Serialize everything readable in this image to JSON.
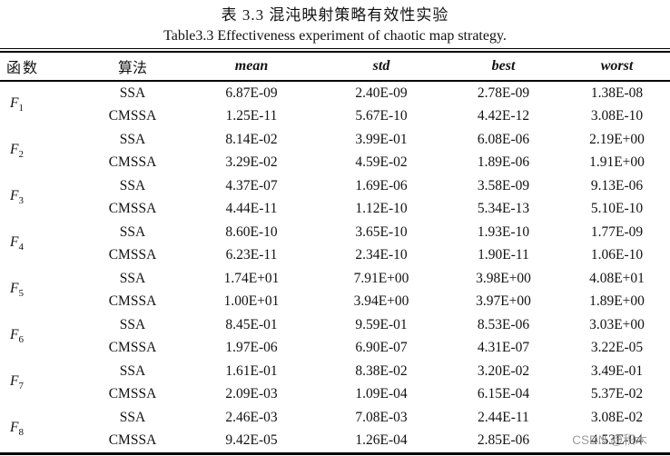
{
  "title": {
    "zh": "表 3.3  混沌映射策略有效性实验",
    "en": "Table3.3 Effectiveness experiment of chaotic map strategy."
  },
  "table": {
    "columns": [
      "函数",
      "算法",
      "mean",
      "std",
      "best",
      "worst"
    ],
    "groups": [
      {
        "func": "F",
        "sub": "1",
        "rows": [
          {
            "algorithm": "SSA",
            "values": [
              "6.87E-09",
              "2.40E-09",
              "2.78E-09",
              "1.38E-08"
            ]
          },
          {
            "algorithm": "CMSSA",
            "values": [
              "1.25E-11",
              "5.67E-10",
              "4.42E-12",
              "3.08E-10"
            ]
          }
        ]
      },
      {
        "func": "F",
        "sub": "2",
        "rows": [
          {
            "algorithm": "SSA",
            "values": [
              "8.14E-02",
              "3.99E-01",
              "6.08E-06",
              "2.19E+00"
            ]
          },
          {
            "algorithm": "CMSSA",
            "values": [
              "3.29E-02",
              "4.59E-02",
              "1.89E-06",
              "1.91E+00"
            ]
          }
        ]
      },
      {
        "func": "F",
        "sub": "3",
        "rows": [
          {
            "algorithm": "SSA",
            "values": [
              "4.37E-07",
              "1.69E-06",
              "3.58E-09",
              "9.13E-06"
            ]
          },
          {
            "algorithm": "CMSSA",
            "values": [
              "4.44E-11",
              "1.12E-10",
              "5.34E-13",
              "5.10E-10"
            ]
          }
        ]
      },
      {
        "func": "F",
        "sub": "4",
        "rows": [
          {
            "algorithm": "SSA",
            "values": [
              "8.60E-10",
              "3.65E-10",
              "1.93E-10",
              "1.77E-09"
            ]
          },
          {
            "algorithm": "CMSSA",
            "values": [
              "6.23E-11",
              "2.34E-10",
              "1.90E-11",
              "1.06E-10"
            ]
          }
        ]
      },
      {
        "func": "F",
        "sub": "5",
        "rows": [
          {
            "algorithm": "SSA",
            "values": [
              "1.74E+01",
              "7.91E+00",
              "3.98E+00",
              "4.08E+01"
            ]
          },
          {
            "algorithm": "CMSSA",
            "values": [
              "1.00E+01",
              "3.94E+00",
              "3.97E+00",
              "1.89E+00"
            ]
          }
        ]
      },
      {
        "func": "F",
        "sub": "6",
        "rows": [
          {
            "algorithm": "SSA",
            "values": [
              "8.45E-01",
              "9.59E-01",
              "8.53E-06",
              "3.03E+00"
            ]
          },
          {
            "algorithm": "CMSSA",
            "values": [
              "1.97E-06",
              "6.90E-07",
              "4.31E-07",
              "3.22E-05"
            ]
          }
        ]
      },
      {
        "func": "F",
        "sub": "7",
        "rows": [
          {
            "algorithm": "SSA",
            "values": [
              "1.61E-01",
              "8.38E-02",
              "3.20E-02",
              "3.49E-01"
            ]
          },
          {
            "algorithm": "CMSSA",
            "values": [
              "2.09E-03",
              "1.09E-04",
              "6.15E-04",
              "5.37E-02"
            ]
          }
        ]
      },
      {
        "func": "F",
        "sub": "8",
        "rows": [
          {
            "algorithm": "SSA",
            "values": [
              "2.46E-03",
              "7.08E-03",
              "2.44E-11",
              "3.08E-02"
            ]
          },
          {
            "algorithm": "CMSSA",
            "values": [
              "9.42E-05",
              "1.26E-04",
              "2.85E-06",
              "4.53E-04"
            ]
          }
        ]
      }
    ]
  },
  "watermark": {
    "text": "CSDN @积木",
    "color": "#9c9c9c"
  }
}
